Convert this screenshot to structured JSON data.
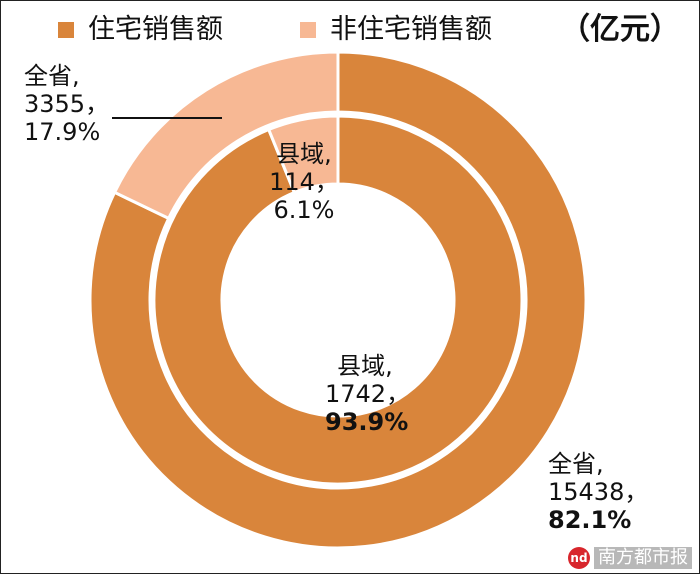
{
  "legend": {
    "items": [
      {
        "label": "住宅销售额",
        "color": "#D9853B"
      },
      {
        "label": "非住宅销售额",
        "color": "#F7B894"
      }
    ],
    "unit": "（亿元）"
  },
  "chart_data": {
    "type": "donut",
    "unit": "亿元",
    "series": [
      {
        "name": "县域",
        "ring": "inner",
        "values": [
          1742,
          114
        ],
        "percents": [
          93.9,
          6.1
        ],
        "categories": [
          "住宅销售额",
          "非住宅销售额"
        ]
      },
      {
        "name": "全省",
        "ring": "outer",
        "values": [
          15438,
          3355
        ],
        "percents": [
          82.1,
          17.9
        ],
        "categories": [
          "住宅销售额",
          "非住宅销售额"
        ]
      }
    ],
    "colors": [
      "#D9853B",
      "#F7B894"
    ]
  },
  "labels": {
    "outer_residential": {
      "name": "全省,",
      "value": "15438，",
      "pct": "82.1%"
    },
    "outer_nonres": {
      "name": "全省,",
      "value": "3355，",
      "pct": "17.9%"
    },
    "inner_residential": {
      "name": "县域,",
      "value": "1742，",
      "pct": "93.9%"
    },
    "inner_nonres": {
      "name": "县域,",
      "value": "114，",
      "pct": "6.1%"
    }
  },
  "watermark": {
    "logo_text": "nd",
    "text": "南方都市报"
  }
}
